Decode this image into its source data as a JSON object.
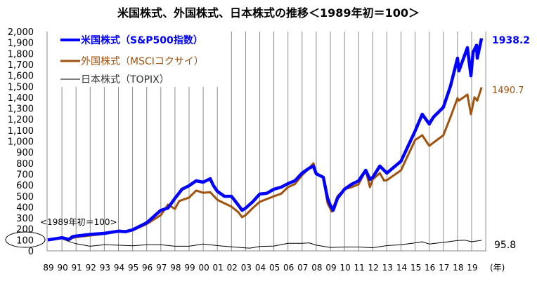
{
  "chart_data": {
    "type": "line",
    "title": "米国株式、外国株式、日本株式の推移＜1989年初＝100＞",
    "xlabel": "(年)",
    "ylabel": "",
    "xlim": [
      1989,
      2020
    ],
    "ylim": [
      0,
      2000
    ],
    "grid": "vertical",
    "legend_position": "top-left",
    "annotation": "<1989年初＝100>",
    "highlighted_ytick": "100",
    "xticks": [
      "89",
      "90",
      "91",
      "92",
      "93",
      "94",
      "95",
      "96",
      "97",
      "98",
      "99",
      "00",
      "01",
      "02",
      "03",
      "04",
      "05",
      "06",
      "07",
      "08",
      "09",
      "10",
      "11",
      "12",
      "13",
      "14",
      "15",
      "16",
      "17",
      "18",
      "19"
    ],
    "yticks": [
      "0",
      "100",
      "200",
      "300",
      "400",
      "500",
      "600",
      "700",
      "800",
      "900",
      "1,000",
      "1,100",
      "1,200",
      "1,300",
      "1,400",
      "1,500",
      "1,600",
      "1,700",
      "1,800",
      "1,900",
      "2,000"
    ],
    "series": [
      {
        "name": "米国株式（S&P500指数）",
        "color": "#0000ff",
        "end_label": "1938.2",
        "points": [
          [
            1989,
            100
          ],
          [
            1989.5,
            110
          ],
          [
            1990,
            120
          ],
          [
            1990.5,
            105
          ],
          [
            1990.75,
            130
          ],
          [
            1991,
            135
          ],
          [
            1992,
            150
          ],
          [
            1993,
            160
          ],
          [
            1994,
            180
          ],
          [
            1994.5,
            175
          ],
          [
            1995,
            192
          ],
          [
            1996,
            256
          ],
          [
            1997,
            370
          ],
          [
            1997.5,
            390
          ],
          [
            1998,
            479
          ],
          [
            1998.5,
            562
          ],
          [
            1999,
            594
          ],
          [
            1999.5,
            639
          ],
          [
            2000,
            626
          ],
          [
            2000.5,
            658
          ],
          [
            2000.7,
            600
          ],
          [
            2001,
            543
          ],
          [
            2001.5,
            498
          ],
          [
            2002,
            498
          ],
          [
            2002.5,
            415
          ],
          [
            2002.75,
            370
          ],
          [
            2003,
            390
          ],
          [
            2003.5,
            447
          ],
          [
            2004,
            518
          ],
          [
            2004.5,
            525
          ],
          [
            2005,
            562
          ],
          [
            2005.5,
            580
          ],
          [
            2006,
            613
          ],
          [
            2006.5,
            640
          ],
          [
            2007,
            709
          ],
          [
            2007.5,
            754
          ],
          [
            2007.8,
            773
          ],
          [
            2008,
            703
          ],
          [
            2008.5,
            671
          ],
          [
            2008.8,
            479
          ],
          [
            2009,
            415
          ],
          [
            2009.2,
            370
          ],
          [
            2009.5,
            479
          ],
          [
            2010,
            562
          ],
          [
            2010.5,
            607
          ],
          [
            2011,
            639
          ],
          [
            2011.5,
            735
          ],
          [
            2011.8,
            652
          ],
          [
            2012,
            671
          ],
          [
            2012.5,
            773
          ],
          [
            2012.8,
            735
          ],
          [
            2013,
            709
          ],
          [
            2014,
            818
          ],
          [
            2015,
            1093
          ],
          [
            2015.5,
            1246
          ],
          [
            2016,
            1157
          ],
          [
            2016.3,
            1220
          ],
          [
            2017,
            1310
          ],
          [
            2017.5,
            1502
          ],
          [
            2018,
            1757
          ],
          [
            2018.1,
            1641
          ],
          [
            2018.7,
            1853
          ],
          [
            2018.95,
            1597
          ],
          [
            2019.1,
            1810
          ],
          [
            2019.35,
            1875
          ],
          [
            2019.4,
            1757
          ],
          [
            2019.7,
            1938.2
          ]
        ]
      },
      {
        "name": "外国株式（MSCIコクサイ）",
        "color": "#a0520f",
        "end_label": "1490.7",
        "points": [
          [
            1989,
            100
          ],
          [
            1989.5,
            108
          ],
          [
            1990,
            115
          ],
          [
            1990.5,
            100
          ],
          [
            1990.75,
            118
          ],
          [
            1991,
            125
          ],
          [
            1992,
            140
          ],
          [
            1993,
            155
          ],
          [
            1994,
            175
          ],
          [
            1994.5,
            172
          ],
          [
            1995,
            186
          ],
          [
            1996,
            245
          ],
          [
            1997,
            326
          ],
          [
            1997.5,
            422
          ],
          [
            1998,
            383
          ],
          [
            1998.3,
            454
          ],
          [
            1999,
            486
          ],
          [
            1999.5,
            550
          ],
          [
            2000,
            530
          ],
          [
            2000.5,
            535
          ],
          [
            2001,
            466
          ],
          [
            2001.5,
            434
          ],
          [
            2002,
            403
          ],
          [
            2002.5,
            351
          ],
          [
            2002.75,
            307
          ],
          [
            2003,
            326
          ],
          [
            2003.5,
            390
          ],
          [
            2004,
            447
          ],
          [
            2005,
            498
          ],
          [
            2005.5,
            520
          ],
          [
            2006,
            581
          ],
          [
            2006.5,
            610
          ],
          [
            2007,
            690
          ],
          [
            2007.5,
            754
          ],
          [
            2007.8,
            799
          ],
          [
            2008,
            709
          ],
          [
            2008.5,
            671
          ],
          [
            2008.8,
            434
          ],
          [
            2009.1,
            358
          ],
          [
            2009.5,
            498
          ],
          [
            2010,
            562
          ],
          [
            2010.5,
            581
          ],
          [
            2011,
            607
          ],
          [
            2011.5,
            735
          ],
          [
            2011.8,
            581
          ],
          [
            2012,
            652
          ],
          [
            2012.5,
            709
          ],
          [
            2012.8,
            640
          ],
          [
            2013,
            645
          ],
          [
            2014,
            735
          ],
          [
            2015,
            1010
          ],
          [
            2015.5,
            1054
          ],
          [
            2016,
            958
          ],
          [
            2017,
            1054
          ],
          [
            2017.5,
            1220
          ],
          [
            2018,
            1393
          ],
          [
            2018.1,
            1370
          ],
          [
            2018.7,
            1425
          ],
          [
            2018.95,
            1246
          ],
          [
            2019.2,
            1400
          ],
          [
            2019.4,
            1370
          ],
          [
            2019.7,
            1490.7
          ]
        ]
      },
      {
        "name": "日本株式（TOPIX）",
        "color": "#000000",
        "end_label": "95.8",
        "points": [
          [
            1989,
            100
          ],
          [
            1989.9,
            115
          ],
          [
            1990.5,
            85
          ],
          [
            1991,
            65
          ],
          [
            1992,
            42
          ],
          [
            1993,
            56
          ],
          [
            1994,
            52
          ],
          [
            1995,
            46
          ],
          [
            1996,
            56
          ],
          [
            1997,
            56
          ],
          [
            1998,
            42
          ],
          [
            1999,
            42
          ],
          [
            2000,
            62
          ],
          [
            2001,
            48
          ],
          [
            2002,
            37
          ],
          [
            2003,
            27
          ],
          [
            2003.3,
            25
          ],
          [
            2004,
            40
          ],
          [
            2005,
            44
          ],
          [
            2006,
            69
          ],
          [
            2007,
            69
          ],
          [
            2007.5,
            73
          ],
          [
            2008,
            52
          ],
          [
            2009,
            31
          ],
          [
            2010,
            35
          ],
          [
            2011,
            35
          ],
          [
            2012,
            29
          ],
          [
            2013,
            48
          ],
          [
            2014,
            56
          ],
          [
            2015,
            73
          ],
          [
            2015.5,
            83
          ],
          [
            2016,
            62
          ],
          [
            2017,
            77
          ],
          [
            2018,
            94
          ],
          [
            2018.5,
            98
          ],
          [
            2019,
            83
          ],
          [
            2019.7,
            95.8
          ]
        ]
      }
    ]
  }
}
